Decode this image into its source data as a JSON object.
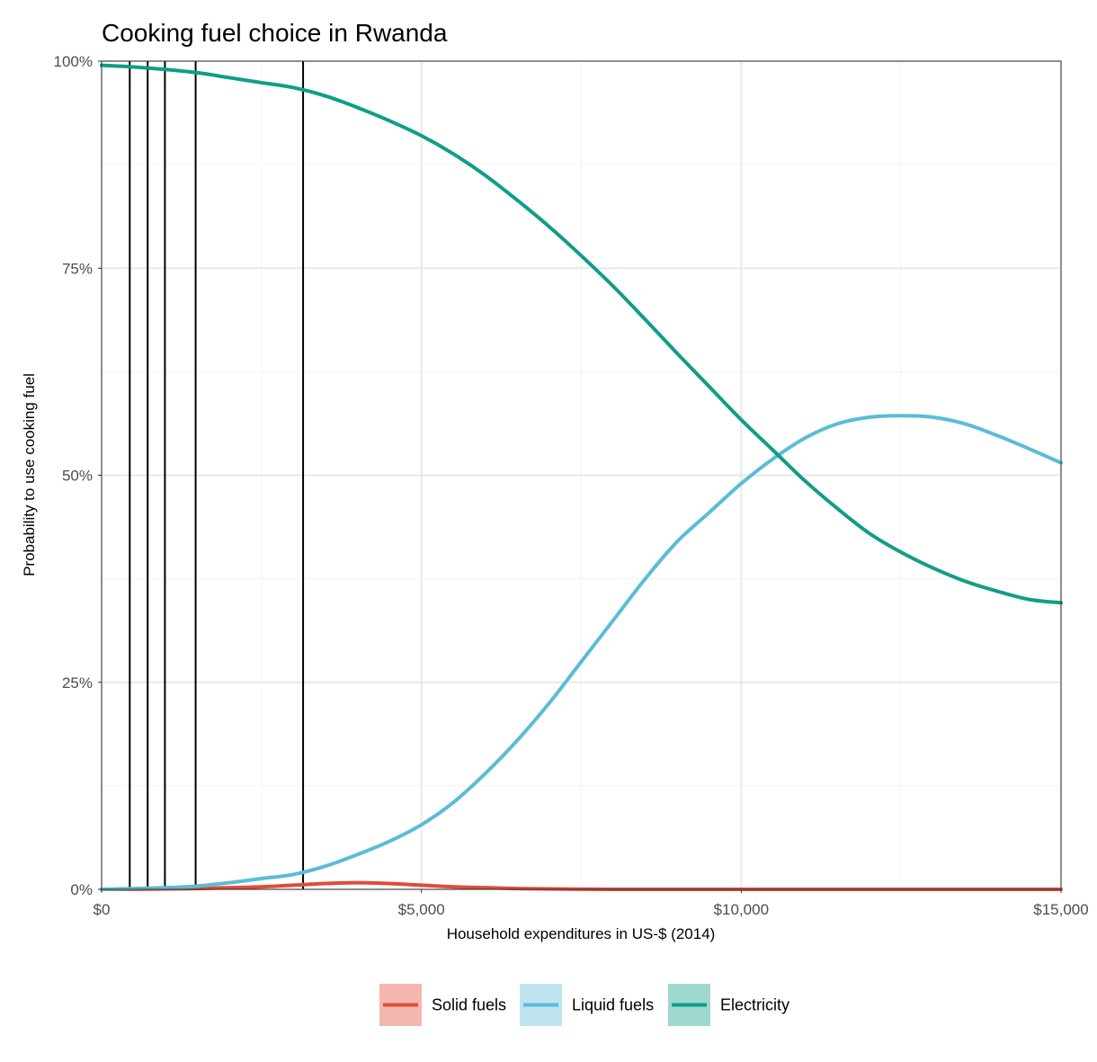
{
  "chart_data": {
    "type": "line",
    "title": "Cooking fuel choice in Rwanda",
    "xlabel": "Household expenditures in US-$ (2014)",
    "ylabel": "Probability to use cooking fuel",
    "xlim": [
      0,
      15000
    ],
    "ylim": [
      0,
      1
    ],
    "grid": true,
    "legend_position": "bottom",
    "x_ticks": [
      0,
      5000,
      10000,
      15000
    ],
    "x_tick_labels": [
      "$0",
      "$5,000",
      "$10,000",
      "$15,000"
    ],
    "y_ticks": [
      0,
      0.25,
      0.5,
      0.75,
      1
    ],
    "y_tick_labels": [
      "0%",
      "25%",
      "50%",
      "75%",
      "100%"
    ],
    "reference_lines_x": [
      440,
      720,
      990,
      1470,
      3150
    ],
    "series": [
      {
        "name": "Solid fuels",
        "color": "#E04B3A",
        "x": [
          0,
          500,
          1000,
          1500,
          2000,
          2500,
          3000,
          3500,
          4000,
          4500,
          5000,
          5500,
          6000,
          6500,
          7000,
          8000,
          10000,
          12500,
          15000
        ],
        "y": [
          0.0,
          0.0,
          0.0005,
          0.001,
          0.002,
          0.003,
          0.005,
          0.007,
          0.008,
          0.007,
          0.005,
          0.003,
          0.002,
          0.001,
          0.0005,
          0.0,
          0.0,
          0.0,
          0.0
        ]
      },
      {
        "name": "Liquid fuels",
        "color": "#5BBCD6",
        "x": [
          0,
          1000,
          1500,
          2000,
          2500,
          3000,
          3500,
          4000,
          4500,
          5000,
          5500,
          6000,
          6500,
          7000,
          7500,
          8000,
          8500,
          9000,
          9500,
          10000,
          10500,
          11000,
          11500,
          12000,
          12500,
          13000,
          13500,
          14000,
          14500,
          15000
        ],
        "y": [
          0.0,
          0.002,
          0.004,
          0.008,
          0.013,
          0.018,
          0.028,
          0.042,
          0.058,
          0.078,
          0.105,
          0.14,
          0.18,
          0.225,
          0.275,
          0.325,
          0.375,
          0.42,
          0.455,
          0.49,
          0.52,
          0.545,
          0.562,
          0.57,
          0.572,
          0.57,
          0.562,
          0.548,
          0.532,
          0.515
        ]
      },
      {
        "name": "Electricity",
        "color": "#0F9E87",
        "x": [
          0,
          500,
          1000,
          1500,
          2000,
          2500,
          3000,
          3500,
          4000,
          4500,
          5000,
          5500,
          6000,
          6500,
          7000,
          7500,
          8000,
          8500,
          9000,
          9500,
          10000,
          10500,
          11000,
          11500,
          12000,
          12500,
          13000,
          13500,
          14000,
          14500,
          15000
        ],
        "y": [
          0.995,
          0.993,
          0.99,
          0.986,
          0.98,
          0.974,
          0.968,
          0.958,
          0.944,
          0.928,
          0.91,
          0.888,
          0.862,
          0.832,
          0.8,
          0.765,
          0.728,
          0.688,
          0.647,
          0.607,
          0.567,
          0.53,
          0.493,
          0.46,
          0.43,
          0.407,
          0.388,
          0.372,
          0.36,
          0.35,
          0.346
        ]
      }
    ]
  }
}
